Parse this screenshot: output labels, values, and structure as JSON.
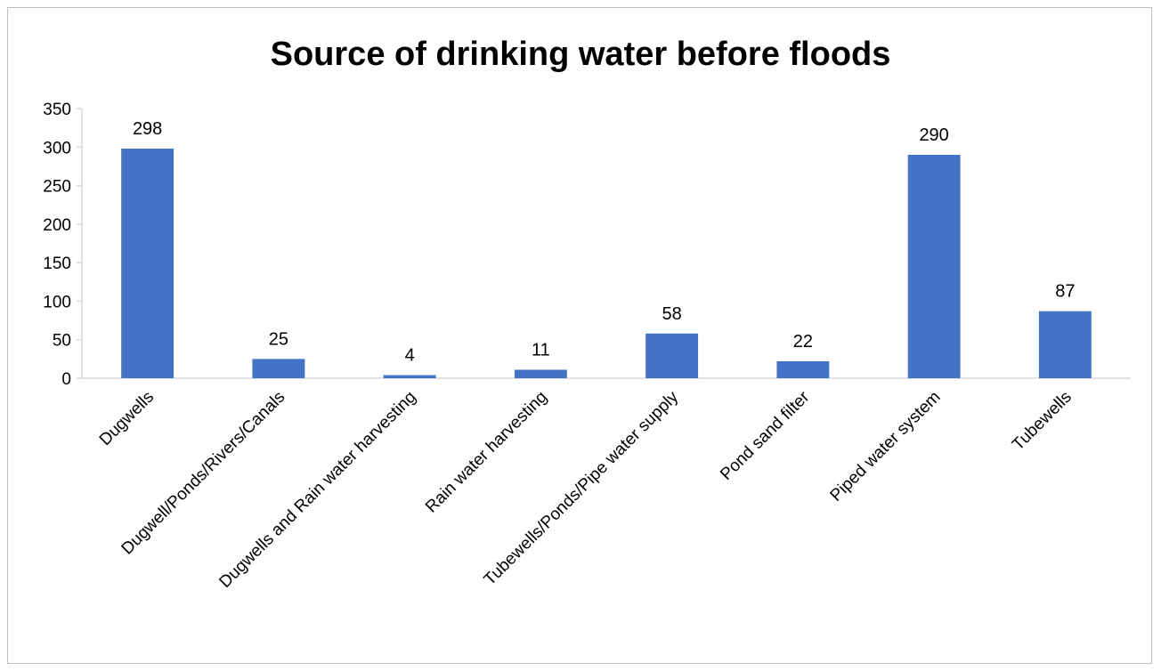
{
  "chart_data": {
    "type": "bar",
    "title": "Source of drinking water before floods",
    "xlabel": "",
    "ylabel": "",
    "ylim": [
      0,
      350
    ],
    "yticks": [
      0,
      50,
      100,
      150,
      200,
      250,
      300,
      350
    ],
    "grid": false,
    "legend": "none",
    "bar_color": "#4472C4",
    "categories": [
      "Dugwells",
      "Dugwell/Ponds/Rivers/Canals",
      "Dugwells and Rain water harvesting",
      "Rain water harvesting",
      "Tubewells/Ponds/Pipe water supply",
      "Pond sand filter",
      "Piped water system",
      "Tubewells"
    ],
    "values": [
      298,
      25,
      4,
      11,
      58,
      22,
      290,
      87
    ]
  }
}
